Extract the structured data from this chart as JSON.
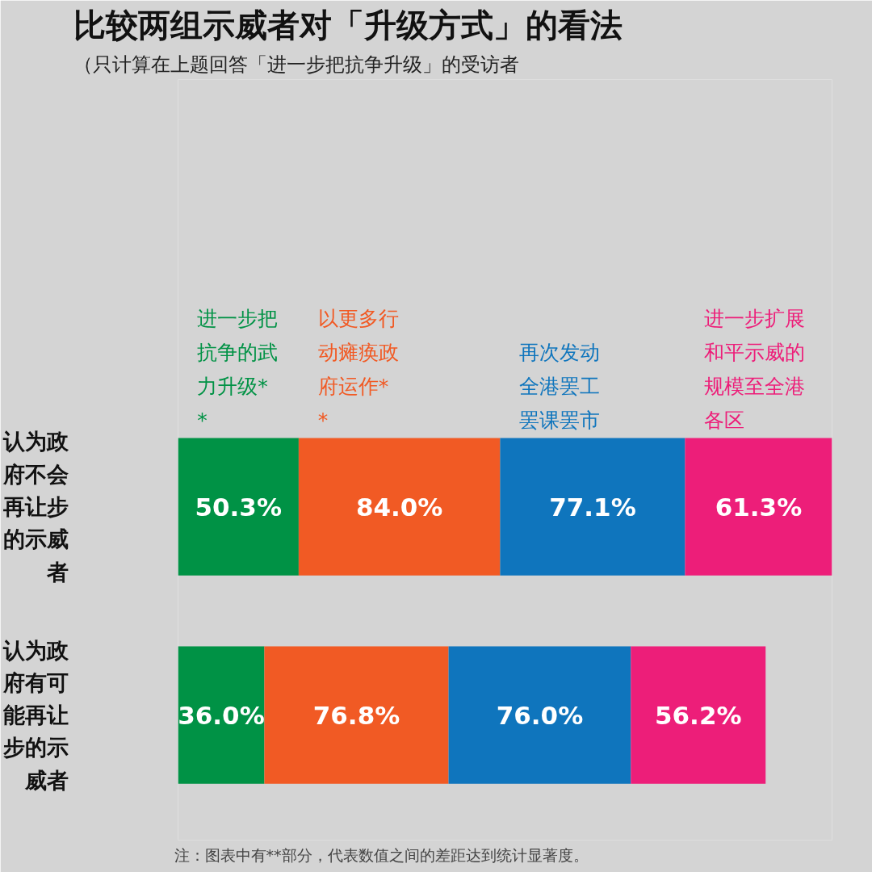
{
  "chart_data": {
    "type": "bar",
    "orientation": "horizontal",
    "stacked": true,
    "title": "比较两组示威者对「升级方式」的看法",
    "subtitle": "（只计算在上题回答「进一步把抗争升级」的受访者",
    "categories": [
      "认为政府不会再让步的示威者",
      "认为政府有可能再让步的示威者"
    ],
    "series": [
      {
        "name": "进一步把抗争的武力升级**",
        "color": "#009245",
        "values": [
          50.3,
          36.0
        ],
        "value_labels": [
          "50.3%",
          "36.0%"
        ]
      },
      {
        "name": "以更多行动瘫痪政府运作**",
        "color": "#f15a24",
        "values": [
          84.0,
          76.8
        ],
        "value_labels": [
          "84.0%",
          "76.8%"
        ]
      },
      {
        "name": "再次发动全港罢工罢课罢市",
        "color": "#0f75bd",
        "values": [
          77.1,
          76.0
        ],
        "value_labels": [
          "77.1%",
          "76.0%"
        ]
      },
      {
        "name": "进一步扩展和平示威的规模至全港各区",
        "color": "#ed1e79",
        "values": [
          61.3,
          56.2
        ],
        "value_labels": [
          "61.3%",
          "56.2%"
        ]
      }
    ],
    "xlim": [
      0,
      272.7
    ],
    "tick_labels": "y",
    "grid": false,
    "legend": "top",
    "annotations": [
      "注：图表中有**部分，代表数值之间的差距达到统计显著度。"
    ]
  }
}
